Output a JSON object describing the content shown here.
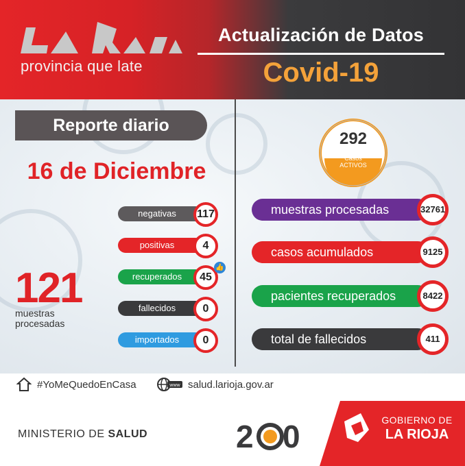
{
  "header": {
    "logo_tagline": "provincia que late",
    "title": "Actualización de Datos",
    "subtitle": "Covid-19"
  },
  "report": {
    "label": "Reporte diario",
    "date": "16 de Diciembre"
  },
  "daily_stats": [
    {
      "label": "negativas",
      "value": "117",
      "color": "#5d5a5c"
    },
    {
      "label": "positivas",
      "value": "4",
      "color": "#e42528"
    },
    {
      "label": "recuperados",
      "value": "45",
      "color": "#1aa34a"
    },
    {
      "label": "fallecidos",
      "value": "0",
      "color": "#3a3a3c"
    },
    {
      "label": "importados",
      "value": "0",
      "color": "#2f9be0"
    }
  ],
  "samples": {
    "value": "121",
    "label_line1": "muestras",
    "label_line2": "procesadas"
  },
  "active_cases": {
    "value": "292",
    "label_line1": "Casos",
    "label_line2": "ACTIVOS",
    "color": "#f39a1f"
  },
  "totals": [
    {
      "label": "muestras procesadas",
      "value": "32761",
      "color": "#6a2f94"
    },
    {
      "label": "casos acumulados",
      "value": "9125",
      "color": "#e42528"
    },
    {
      "label": "pacientes recuperados",
      "value": "8422",
      "color": "#1aa34a"
    },
    {
      "label": "total de fallecidos",
      "value": "411",
      "color": "#3a3a3c"
    }
  ],
  "footer": {
    "hashtag": "#YoMeQuedoEnCasa",
    "website": "salud.larioja.gov.ar",
    "www_badge": "www",
    "ministry_prefix": "MINISTERIO DE ",
    "ministry_bold": "SALUD",
    "gov_line1": "GOBIERNO DE",
    "gov_line2": "LA RIOJA",
    "anniversary_logo_text": "200"
  },
  "icons": [
    "house-icon",
    "globe-icon",
    "thumbs-up-icon",
    "virus-icon"
  ]
}
